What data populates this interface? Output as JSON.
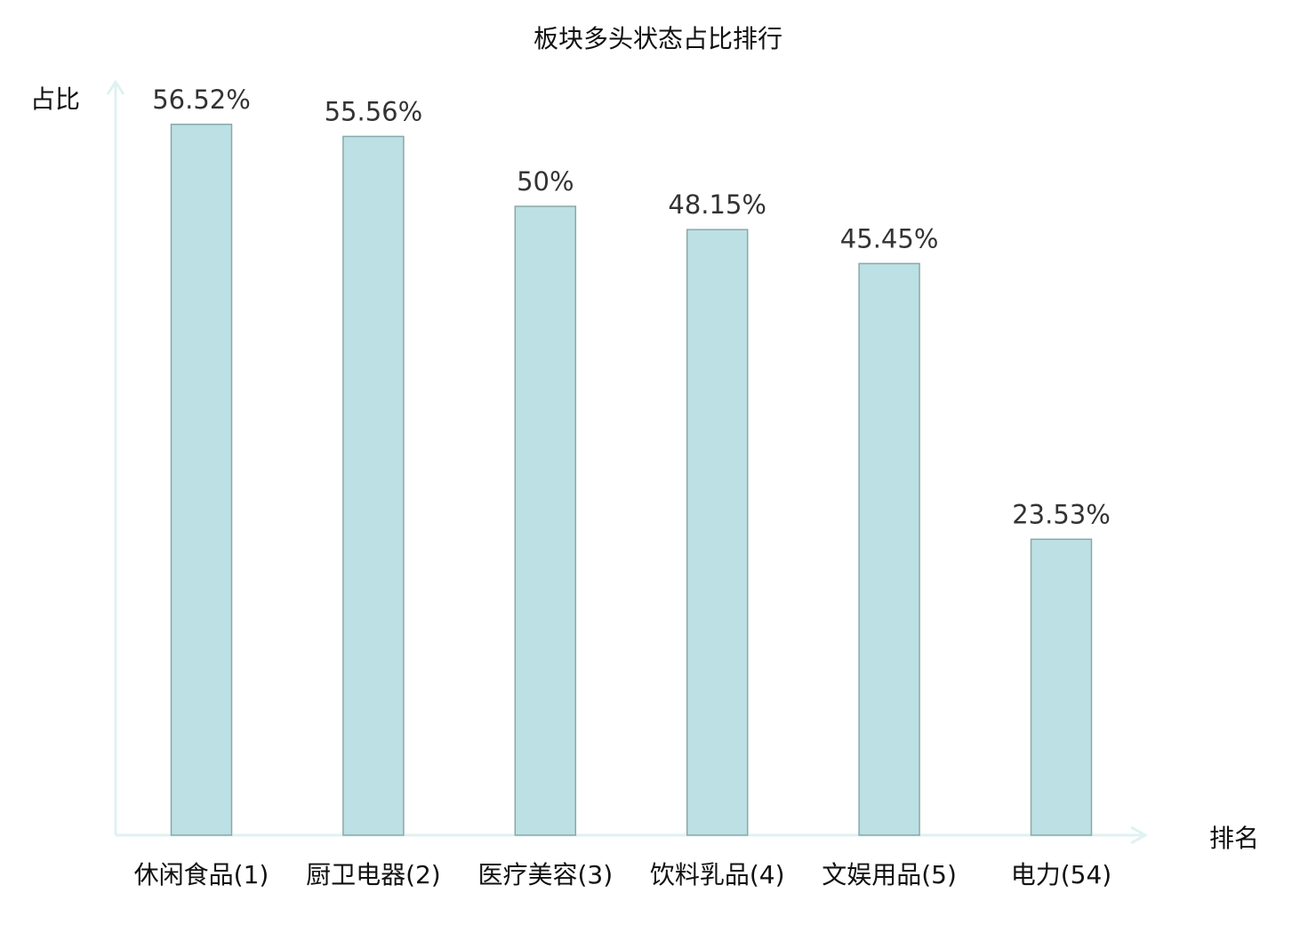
{
  "chart_data": {
    "type": "bar",
    "title": "板块多头状态占比排行",
    "ylabel": "占比",
    "xlabel": "排名",
    "categories": [
      "休闲食品(1)",
      "厨卫电器(2)",
      "医疗美容(3)",
      "饮料乳品(4)",
      "文娱用品(5)",
      "电力(54)"
    ],
    "values": [
      56.52,
      55.56,
      50,
      48.15,
      45.45,
      23.53
    ],
    "data_labels": [
      "56.52%",
      "55.56%",
      "50%",
      "48.15%",
      "45.45%",
      "23.53%"
    ],
    "ylim": [
      0,
      60
    ],
    "grid": false,
    "legend": "none",
    "highlight_category_index": 5,
    "colors": {
      "bar_fill": "#bce0e3",
      "bar_stroke": "#8aa8aa",
      "axis": "#dff2f0",
      "highlight_label": "#e8181c",
      "label": "#111111",
      "data_label": "#333333"
    }
  }
}
